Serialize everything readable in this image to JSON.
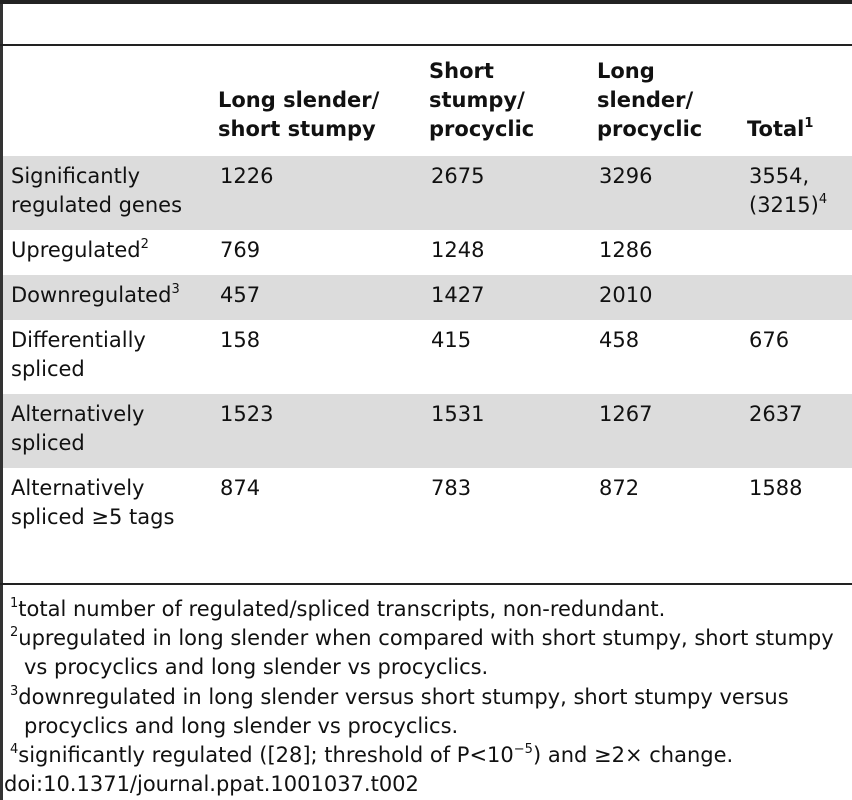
{
  "table": {
    "headers": [
      {
        "text": "",
        "sup": ""
      },
      {
        "text": "Long slender/\nshort stumpy",
        "sup": ""
      },
      {
        "text": "Short\nstumpy/\nprocyclic",
        "sup": ""
      },
      {
        "text": "Long\nslender/\nprocyclic",
        "sup": ""
      },
      {
        "text": "Total",
        "sup": "1"
      }
    ],
    "rows": [
      {
        "label": "Significantly\nregulated genes",
        "label_sup": "",
        "ls_ss": "1226",
        "ss_pc": "2675",
        "ls_pc": "3296",
        "total": "3554,\n(3215)",
        "total_sup": "4"
      },
      {
        "label": "Upregulated",
        "label_sup": "2",
        "ls_ss": "769",
        "ss_pc": "1248",
        "ls_pc": "1286",
        "total": "",
        "total_sup": ""
      },
      {
        "label": "Downregulated",
        "label_sup": "3",
        "ls_ss": "457",
        "ss_pc": "1427",
        "ls_pc": "2010",
        "total": "",
        "total_sup": ""
      },
      {
        "label": "Differentially\nspliced",
        "label_sup": "",
        "ls_ss": "158",
        "ss_pc": "415",
        "ls_pc": "458",
        "total": "676",
        "total_sup": ""
      },
      {
        "label": "Alternatively\nspliced",
        "label_sup": "",
        "ls_ss": "1523",
        "ss_pc": "1531",
        "ls_pc": "1267",
        "total": "2637",
        "total_sup": ""
      },
      {
        "label": "Alternatively\nspliced ≥5 tags",
        "label_sup": "",
        "ls_ss": "874",
        "ss_pc": "783",
        "ls_pc": "872",
        "total": "1588",
        "total_sup": ""
      }
    ]
  },
  "footnotes": {
    "f1": {
      "num": "1",
      "text": "total number of regulated/spliced transcripts, non-redundant."
    },
    "f2": {
      "num": "2",
      "line1": "upregulated in long slender when compared with short stumpy, short stumpy",
      "line2": "vs procyclics and long slender vs procyclics."
    },
    "f3": {
      "num": "3",
      "line1": "downregulated in long slender versus short stumpy, short stumpy versus",
      "line2": "procyclics and long slender vs procyclics."
    },
    "f4": {
      "num": "4",
      "pre": "significantly regulated ([28]; threshold of P<10",
      "exp": "−5",
      "post": ") and ≥2× change."
    }
  },
  "doi": "doi:10.1371/journal.ppat.1001037.t002"
}
